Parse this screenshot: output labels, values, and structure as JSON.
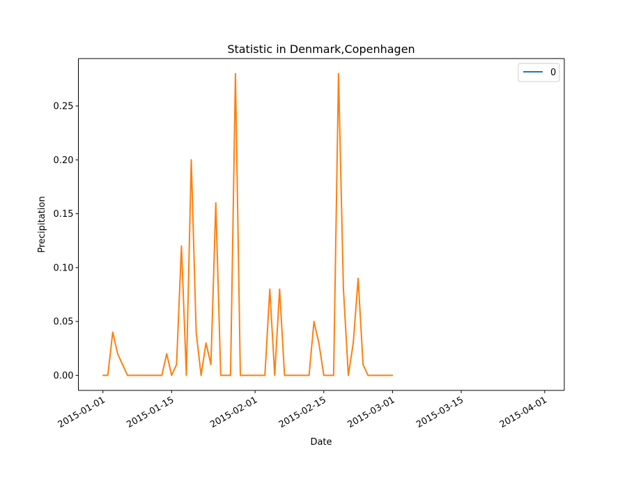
{
  "chart_data": {
    "type": "line",
    "title": "Statistic in Denmark,Copenhagen",
    "xlabel": "Date",
    "ylabel": "Precipitation",
    "xlim": [
      "2014-12-27",
      "2015-04-05"
    ],
    "ylim": [
      -0.014,
      0.294
    ],
    "x_ticks": [
      "2015-01-01",
      "2015-01-15",
      "2015-02-01",
      "2015-02-15",
      "2015-03-01",
      "2015-03-15",
      "2015-04-01"
    ],
    "y_ticks": [
      "0.00",
      "0.05",
      "0.10",
      "0.15",
      "0.20",
      "0.25"
    ],
    "legend": {
      "position": "top-right",
      "entries": [
        {
          "label": "0",
          "color": "#1f77b4"
        }
      ]
    },
    "grid": false,
    "series": [
      {
        "color": "#ff7f0e",
        "points": [
          [
            "2015-01-01",
            0.0
          ],
          [
            "2015-01-02",
            0.0
          ],
          [
            "2015-01-03",
            0.04
          ],
          [
            "2015-01-04",
            0.02
          ],
          [
            "2015-01-05",
            0.01
          ],
          [
            "2015-01-06",
            0.0
          ],
          [
            "2015-01-07",
            0.0
          ],
          [
            "2015-01-08",
            0.0
          ],
          [
            "2015-01-09",
            0.0
          ],
          [
            "2015-01-10",
            0.0
          ],
          [
            "2015-01-11",
            0.0
          ],
          [
            "2015-01-12",
            0.0
          ],
          [
            "2015-01-13",
            0.0
          ],
          [
            "2015-01-14",
            0.02
          ],
          [
            "2015-01-15",
            0.0
          ],
          [
            "2015-01-16",
            0.01
          ],
          [
            "2015-01-17",
            0.12
          ],
          [
            "2015-01-18",
            0.0
          ],
          [
            "2015-01-19",
            0.2
          ],
          [
            "2015-01-20",
            0.04
          ],
          [
            "2015-01-21",
            0.0
          ],
          [
            "2015-01-22",
            0.03
          ],
          [
            "2015-01-23",
            0.01
          ],
          [
            "2015-01-24",
            0.16
          ],
          [
            "2015-01-25",
            0.0
          ],
          [
            "2015-01-26",
            0.0
          ],
          [
            "2015-01-27",
            0.0
          ],
          [
            "2015-01-28",
            0.28
          ],
          [
            "2015-01-29",
            0.0
          ],
          [
            "2015-01-30",
            0.0
          ],
          [
            "2015-01-31",
            0.0
          ],
          [
            "2015-02-01",
            0.0
          ],
          [
            "2015-02-02",
            0.0
          ],
          [
            "2015-02-03",
            0.0
          ],
          [
            "2015-02-04",
            0.08
          ],
          [
            "2015-02-05",
            0.0
          ],
          [
            "2015-02-06",
            0.08
          ],
          [
            "2015-02-07",
            0.0
          ],
          [
            "2015-02-08",
            0.0
          ],
          [
            "2015-02-09",
            0.0
          ],
          [
            "2015-02-10",
            0.0
          ],
          [
            "2015-02-11",
            0.0
          ],
          [
            "2015-02-12",
            0.0
          ],
          [
            "2015-02-13",
            0.05
          ],
          [
            "2015-02-14",
            0.03
          ],
          [
            "2015-02-15",
            0.0
          ],
          [
            "2015-02-16",
            0.0
          ],
          [
            "2015-02-17",
            0.0
          ],
          [
            "2015-02-18",
            0.28
          ],
          [
            "2015-02-19",
            0.08
          ],
          [
            "2015-02-20",
            0.0
          ],
          [
            "2015-02-21",
            0.03
          ],
          [
            "2015-02-22",
            0.09
          ],
          [
            "2015-02-23",
            0.01
          ],
          [
            "2015-02-24",
            0.0
          ],
          [
            "2015-02-25",
            0.0
          ],
          [
            "2015-02-26",
            0.0
          ],
          [
            "2015-02-27",
            0.0
          ],
          [
            "2015-02-28",
            0.0
          ],
          [
            "2015-03-01",
            0.0
          ]
        ]
      }
    ]
  }
}
